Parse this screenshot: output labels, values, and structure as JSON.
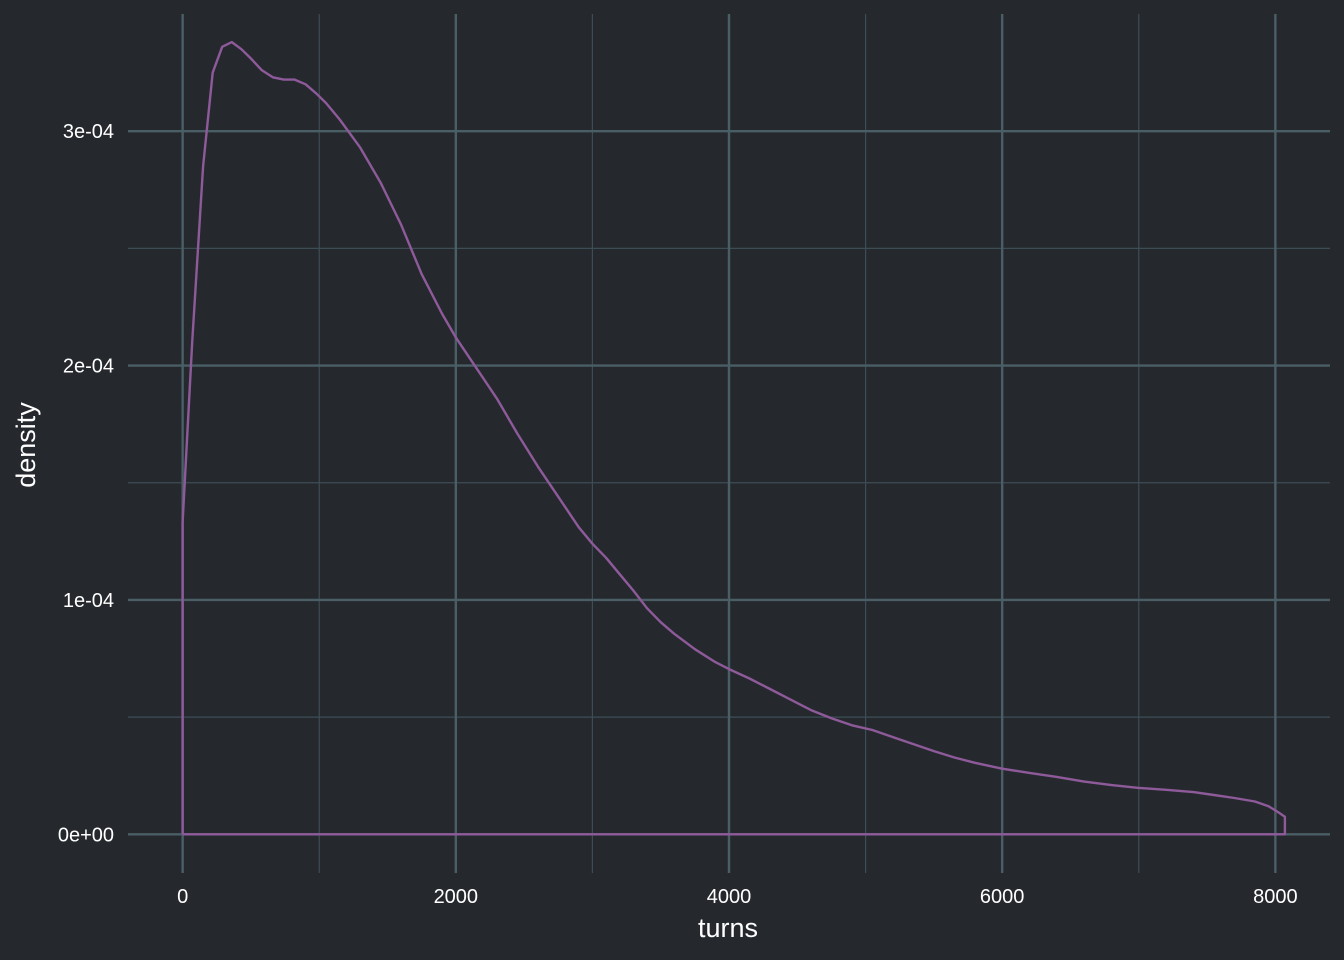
{
  "chart_data": {
    "type": "area",
    "title": "",
    "xlabel": "turns",
    "ylabel": "density",
    "xlim": [
      -400,
      8400
    ],
    "ylim": [
      -1.65e-05,
      0.00035
    ],
    "x_ticks": [
      0,
      2000,
      4000,
      6000,
      8000
    ],
    "x_tick_labels": [
      "0",
      "2000",
      "4000",
      "6000",
      "8000"
    ],
    "x_minor_ticks": [
      1000,
      3000,
      5000,
      7000
    ],
    "y_ticks": [
      0,
      0.0001,
      0.0002,
      0.0003
    ],
    "y_tick_labels": [
      "0e+00",
      "1e-04",
      "2e-04",
      "3e-04"
    ],
    "y_minor_ticks": [
      5e-05,
      0.00015,
      0.00025
    ],
    "grid": true,
    "legend": "none",
    "colors": {
      "background": "#25292e",
      "grid_major": "#4a5e66",
      "grid_minor": "#3d4d55",
      "line": "#8e5a9a",
      "text": "#ffffff"
    },
    "series": [
      {
        "x": [
          0,
          0,
          70,
          150,
          220,
          290,
          360,
          430,
          500,
          580,
          660,
          740,
          820,
          900,
          980,
          1050,
          1150,
          1300,
          1450,
          1600,
          1750,
          1900,
          2000,
          2150,
          2300,
          2450,
          2600,
          2750,
          2900,
          3000,
          3100,
          3200,
          3300,
          3400,
          3500,
          3600,
          3750,
          3900,
          4000,
          4150,
          4300,
          4450,
          4600,
          4750,
          4900,
          5050,
          5200,
          5350,
          5500,
          5650,
          5800,
          6000,
          6200,
          6400,
          6600,
          6800,
          7000,
          7200,
          7400,
          7550,
          7700,
          7850,
          7950,
          8020,
          8070,
          8070,
          0
        ],
        "values": [
          0,
          0.000133,
          0.00021,
          0.000285,
          0.000325,
          0.000336,
          0.000338,
          0.000335,
          0.000331,
          0.000326,
          0.000323,
          0.000322,
          0.000322,
          0.00032,
          0.000316,
          0.000312,
          0.000305,
          0.000293,
          0.000278,
          0.00026,
          0.000239,
          0.000222,
          0.000212,
          0.000199,
          0.000186,
          0.000171,
          0.000157,
          0.000144,
          0.000131,
          0.000124,
          0.000118,
          0.000111,
          0.000104,
          9.65e-05,
          9.05e-05,
          8.55e-05,
          7.9e-05,
          7.35e-05,
          7.05e-05,
          6.65e-05,
          6.2e-05,
          5.75e-05,
          5.3e-05,
          4.95e-05,
          4.65e-05,
          4.45e-05,
          4.15e-05,
          3.85e-05,
          3.55e-05,
          3.28e-05,
          3.05e-05,
          2.8e-05,
          2.62e-05,
          2.45e-05,
          2.25e-05,
          2.1e-05,
          1.98e-05,
          1.9e-05,
          1.8e-05,
          1.68e-05,
          1.55e-05,
          1.4e-05,
          1.2e-05,
          9.5e-06,
          7.5e-06,
          0,
          0
        ]
      }
    ]
  }
}
